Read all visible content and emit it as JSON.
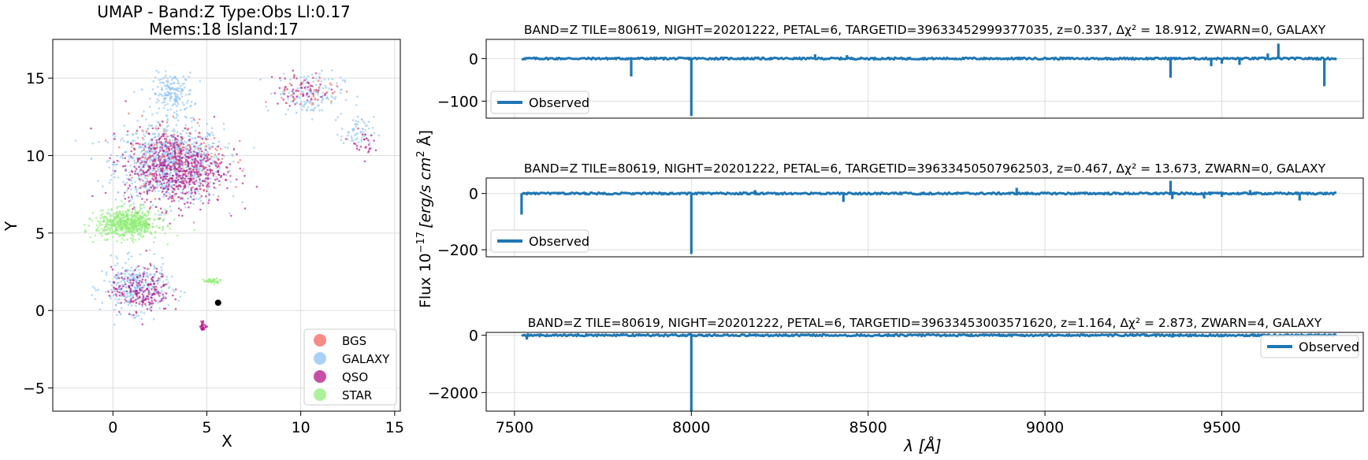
{
  "figure": {
    "flux_ylabel": "Flux 10",
    "flux_ylabel_exp": "−17",
    "flux_ylabel_units": "[erg/s cm",
    "flux_ylabel_units_exp": "2",
    "flux_ylabel_units_end": " Å]",
    "wavelength_xlabel": "λ [Å]"
  },
  "chart_data": [
    {
      "type": "scatter",
      "title_line1": "UMAP  -  Band:Z Type:Obs Ll:0.17",
      "title_line2": "Mems:18 Island:17",
      "xlabel": "X",
      "ylabel": "Y",
      "xlim": [
        -3.2,
        15.3
      ],
      "ylim": [
        -6.5,
        17.5
      ],
      "xticks": [
        0,
        5,
        10,
        15
      ],
      "yticks": [
        -5,
        0,
        5,
        10,
        15
      ],
      "grid": true,
      "legend_position": "lower-right",
      "series": [
        {
          "name": "BGS",
          "color": "#f4645c"
        },
        {
          "name": "GALAXY",
          "color": "#8ec3f5"
        },
        {
          "name": "QSO",
          "color": "#b3148a"
        },
        {
          "name": "STAR",
          "color": "#92ee7a"
        }
      ],
      "highlight": {
        "x": 5.6,
        "y": 0.5,
        "color": "#000000"
      },
      "clusters": [
        {
          "series": "GALAXY",
          "cx": 3.0,
          "cy": 9.5,
          "sx": 2.6,
          "sy": 2.3,
          "n": 900
        },
        {
          "series": "GALAXY",
          "cx": 3.2,
          "cy": 14.0,
          "sx": 1.0,
          "sy": 1.2,
          "n": 180
        },
        {
          "series": "GALAXY",
          "cx": 1.2,
          "cy": 1.5,
          "sx": 1.6,
          "sy": 1.5,
          "n": 320
        },
        {
          "series": "GALAXY",
          "cx": 10.5,
          "cy": 14.0,
          "sx": 1.6,
          "sy": 1.3,
          "n": 140
        },
        {
          "series": "GALAXY",
          "cx": 13.0,
          "cy": 11.5,
          "sx": 0.8,
          "sy": 0.9,
          "n": 60
        },
        {
          "series": "QSO",
          "cx": 3.3,
          "cy": 9.2,
          "sx": 2.4,
          "sy": 2.2,
          "n": 650
        },
        {
          "series": "QSO",
          "cx": 1.5,
          "cy": 1.3,
          "sx": 1.4,
          "sy": 1.3,
          "n": 200
        },
        {
          "series": "QSO",
          "cx": 4.8,
          "cy": -1.0,
          "sx": 0.15,
          "sy": 0.3,
          "n": 30
        },
        {
          "series": "QSO",
          "cx": 10.0,
          "cy": 14.3,
          "sx": 1.4,
          "sy": 1.0,
          "n": 60
        },
        {
          "series": "QSO",
          "cx": 13.2,
          "cy": 10.8,
          "sx": 0.6,
          "sy": 0.7,
          "n": 25
        },
        {
          "series": "BGS",
          "cx": 3.5,
          "cy": 9.8,
          "sx": 2.4,
          "sy": 2.4,
          "n": 160
        },
        {
          "series": "BGS",
          "cx": 10.5,
          "cy": 14.0,
          "sx": 1.5,
          "sy": 1.1,
          "n": 40
        },
        {
          "series": "STAR",
          "cx": 0.8,
          "cy": 5.6,
          "sx": 1.5,
          "sy": 0.8,
          "n": 650
        },
        {
          "series": "STAR",
          "cx": 5.3,
          "cy": 1.9,
          "sx": 0.4,
          "sy": 0.15,
          "n": 40
        }
      ]
    },
    {
      "type": "line",
      "title": "BAND=Z TILE=80619, NIGHT=20201222, PETAL=6, TARGETID=39633452999377035, z=0.337, Δχ² = 18.912, ZWARN=0, GALAXY",
      "xlim": [
        7420,
        9900
      ],
      "ylim": [
        -140,
        45
      ],
      "yticks": [
        -100,
        0
      ],
      "ytick_labels": [
        "−100",
        "0"
      ],
      "legend": "Observed",
      "legend_position": "lower-left",
      "color": "#1f77b4",
      "baseline": 0,
      "x_range": [
        7520,
        9825
      ],
      "features": [
        [
          7530,
          -4
        ],
        [
          7830,
          -42
        ],
        [
          8000,
          -135
        ],
        [
          8350,
          10
        ],
        [
          8440,
          8
        ],
        [
          9355,
          -45
        ],
        [
          9470,
          -18
        ],
        [
          9500,
          -12
        ],
        [
          9550,
          -15
        ],
        [
          9630,
          12
        ],
        [
          9660,
          35
        ],
        [
          9790,
          -65
        ]
      ]
    },
    {
      "type": "line",
      "title": "BAND=Z TILE=80619, NIGHT=20201222, PETAL=6, TARGETID=39633450507962503, z=0.467, Δχ² = 13.673, ZWARN=0, GALAXY",
      "xlim": [
        7420,
        9900
      ],
      "ylim": [
        -225,
        55
      ],
      "yticks": [
        -200,
        0
      ],
      "ytick_labels": [
        "−200",
        "0"
      ],
      "legend": "Observed",
      "legend_position": "lower-left",
      "color": "#1f77b4",
      "baseline": 0,
      "x_range": [
        7520,
        9825
      ],
      "features": [
        [
          7520,
          -75
        ],
        [
          8000,
          -215
        ],
        [
          8180,
          12
        ],
        [
          8430,
          -30
        ],
        [
          8920,
          20
        ],
        [
          9355,
          45
        ],
        [
          9360,
          -20
        ],
        [
          9450,
          -18
        ],
        [
          9500,
          -12
        ],
        [
          9580,
          12
        ],
        [
          9720,
          -25
        ]
      ]
    },
    {
      "type": "line",
      "title": "BAND=Z TILE=80619, NIGHT=20201222, PETAL=6, TARGETID=39633453003571620, z=1.164, Δχ² = 2.873, ZWARN=4, GALAXY",
      "xlabel": "λ [Å]",
      "xlim": [
        7420,
        9900
      ],
      "ylim": [
        -2650,
        100
      ],
      "yticks": [
        -2000,
        0
      ],
      "ytick_labels": [
        "−2000",
        "0"
      ],
      "xticks": [
        7500,
        8000,
        8500,
        9000,
        9500
      ],
      "legend": "Observed",
      "legend_position": "upper-right",
      "color": "#1f77b4",
      "baseline": 0,
      "x_range": [
        7520,
        9825
      ],
      "features": [
        [
          7535,
          -150
        ],
        [
          8000,
          -2650
        ],
        [
          9360,
          -80
        ]
      ]
    }
  ]
}
